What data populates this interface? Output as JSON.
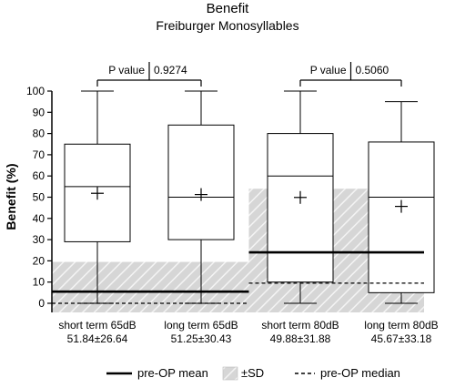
{
  "chart_data": {
    "type": "box",
    "title": "Benefit",
    "subtitle": "Freiburger Monosyllables",
    "ylabel": "Benefit (%)",
    "xlabel": "",
    "ylim": [
      -3,
      100
    ],
    "yticks": [
      0,
      10,
      20,
      30,
      40,
      50,
      60,
      70,
      80,
      90,
      100
    ],
    "grid": false,
    "categories": [
      "short term 65dB",
      "long term 65dB",
      "short term 80dB",
      "long term 80dB"
    ],
    "category_stats": [
      "51.84±26.64",
      "51.25±30.43",
      "49.88±31.88",
      "45.67±33.18"
    ],
    "boxes": [
      {
        "category": "short term 65dB",
        "whisker_low": 0,
        "q1": 29,
        "median": 55,
        "q3": 75,
        "whisker_high": 100,
        "mean": 51.84
      },
      {
        "category": "long term 65dB",
        "whisker_low": 0,
        "q1": 30,
        "median": 50,
        "q3": 84,
        "whisker_high": 100,
        "mean": 51.25
      },
      {
        "category": "short term 80dB",
        "whisker_low": 0,
        "q1": 10,
        "median": 60,
        "q3": 80,
        "whisker_high": 100,
        "mean": 49.88
      },
      {
        "category": "long term 80dB",
        "whisker_low": 0,
        "q1": 5,
        "median": 50,
        "q3": 76,
        "whisker_high": 95,
        "mean": 45.67
      }
    ],
    "reference_groups": [
      {
        "categories": [
          "short term 65dB",
          "long term 65dB"
        ],
        "pre_op_mean": 5.5,
        "sd_band": [
          0,
          19.5
        ],
        "pre_op_median": 0
      },
      {
        "categories": [
          "short term 80dB",
          "long term 80dB"
        ],
        "pre_op_mean": 24,
        "sd_band": [
          0,
          54
        ],
        "pre_op_median": 9.5
      }
    ],
    "comparisons": [
      {
        "between": [
          "short term 65dB",
          "long term 65dB"
        ],
        "label": "P value",
        "value": "0.9274"
      },
      {
        "between": [
          "short term 80dB",
          "long term 80dB"
        ],
        "label": "P value",
        "value": "0.5060"
      }
    ],
    "legend": {
      "position": "bottom",
      "items": [
        {
          "label": "pre-OP mean",
          "style": "thick-solid-line"
        },
        {
          "label": "±SD",
          "style": "hatched-band"
        },
        {
          "label": "pre-OP median",
          "style": "dashed-line"
        }
      ]
    },
    "colors": {
      "box_fill": "#ffffff",
      "line": "#000000",
      "band_fill": "#d6d6d6",
      "hatch": "#f2f2f2"
    }
  }
}
